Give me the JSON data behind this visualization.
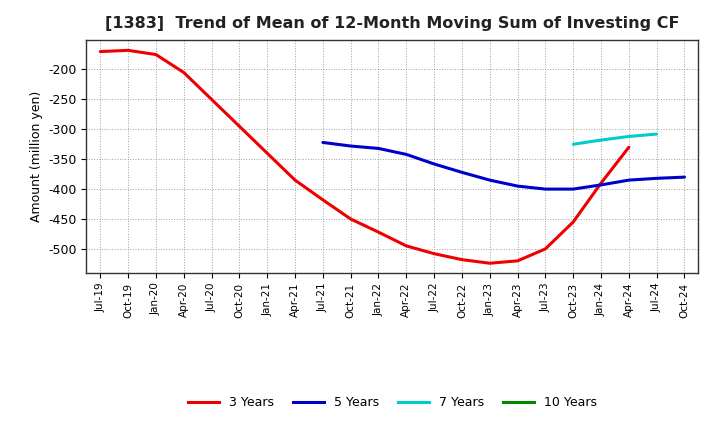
{
  "title": "[1383]  Trend of Mean of 12-Month Moving Sum of Investing CF",
  "ylabel": "Amount (million yen)",
  "background_color": "#ffffff",
  "grid_color": "#888888",
  "ylim": [
    -540,
    -150
  ],
  "yticks": [
    -500,
    -450,
    -400,
    -350,
    -300,
    -250,
    -200
  ],
  "x_labels": [
    "Jul-19",
    "Oct-19",
    "Jan-20",
    "Apr-20",
    "Jul-20",
    "Oct-20",
    "Jan-21",
    "Apr-21",
    "Jul-21",
    "Oct-21",
    "Jan-22",
    "Apr-22",
    "Jul-22",
    "Oct-22",
    "Jan-23",
    "Apr-23",
    "Jul-23",
    "Oct-23",
    "Jan-24",
    "Apr-24",
    "Jul-24",
    "Oct-24"
  ],
  "series": [
    {
      "key": "3years",
      "color": "#ee0000",
      "label": "3 Years",
      "points": [
        [
          0,
          -170
        ],
        [
          1,
          -168
        ],
        [
          2,
          -175
        ],
        [
          3,
          -205
        ],
        [
          4,
          -250
        ],
        [
          5,
          -295
        ],
        [
          6,
          -340
        ],
        [
          7,
          -385
        ],
        [
          8,
          -418
        ],
        [
          9,
          -450
        ],
        [
          10,
          -472
        ],
        [
          11,
          -495
        ],
        [
          12,
          -508
        ],
        [
          13,
          -518
        ],
        [
          14,
          -524
        ],
        [
          15,
          -520
        ],
        [
          16,
          -500
        ],
        [
          17,
          -455
        ],
        [
          18,
          -390
        ],
        [
          19,
          -330
        ]
      ]
    },
    {
      "key": "5years",
      "color": "#0000cc",
      "label": "5 Years",
      "points": [
        [
          8,
          -322
        ],
        [
          9,
          -328
        ],
        [
          10,
          -332
        ],
        [
          11,
          -342
        ],
        [
          12,
          -358
        ],
        [
          13,
          -372
        ],
        [
          14,
          -385
        ],
        [
          15,
          -395
        ],
        [
          16,
          -400
        ],
        [
          17,
          -400
        ],
        [
          18,
          -393
        ],
        [
          19,
          -385
        ],
        [
          20,
          -382
        ],
        [
          21,
          -380
        ]
      ]
    },
    {
      "key": "7years",
      "color": "#00cccc",
      "label": "7 Years",
      "points": [
        [
          17,
          -325
        ],
        [
          18,
          -318
        ],
        [
          19,
          -312
        ],
        [
          20,
          -308
        ]
      ]
    },
    {
      "key": "10years",
      "color": "#008800",
      "label": "10 Years",
      "points": []
    }
  ]
}
